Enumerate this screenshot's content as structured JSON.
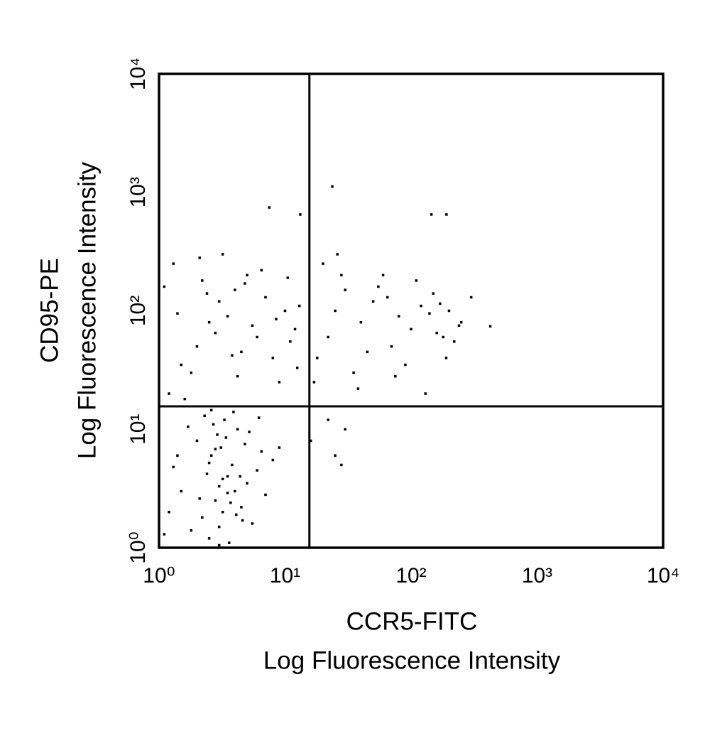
{
  "chart_data": {
    "type": "scatter",
    "x_title": [
      "CCR5-FITC",
      "Log Fluorescence Intensity"
    ],
    "y_title": [
      "CD95-PE",
      "Log Fluorescence Intensity"
    ],
    "log_x": true,
    "log_y": true,
    "xlim": [
      1,
      10000
    ],
    "ylim": [
      1,
      10000
    ],
    "xticks": [
      {
        "value": 1,
        "label": "10⁰"
      },
      {
        "value": 10,
        "label": "10¹"
      },
      {
        "value": 100,
        "label": "10²"
      },
      {
        "value": 1000,
        "label": "10³"
      },
      {
        "value": 10000,
        "label": "10⁴"
      }
    ],
    "yticks": [
      {
        "value": 1,
        "label": "10⁰"
      },
      {
        "value": 10,
        "label": "10¹"
      },
      {
        "value": 100,
        "label": "10²"
      },
      {
        "value": 1000,
        "label": "10³"
      },
      {
        "value": 10000,
        "label": "10⁴"
      }
    ],
    "quadrant_x": 15.6,
    "quadrant_y": 15.6,
    "color": "#000000",
    "x": [
      2.5,
      3,
      3.2,
      2.8,
      4,
      3.5,
      2.2,
      4.5,
      5,
      3.8,
      2.6,
      3.1,
      1.5,
      1.8,
      2,
      6,
      7,
      4.2,
      3.3,
      2.9,
      1.2,
      1.4,
      5.5,
      3.6,
      2.4,
      4.8,
      3,
      2.7,
      3.9,
      6.5,
      8,
      1.1,
      2.1,
      3.4,
      4.1,
      2.3,
      5.2,
      3.7,
      2.5,
      4.4,
      1.7,
      3,
      6.2,
      9,
      3.2,
      2.8,
      4.6,
      1.3,
      3.5,
      2.6,
      1.2,
      1.5,
      2,
      2.5,
      3,
      4,
      5,
      6,
      8,
      10,
      12,
      1.3,
      1.8,
      2.2,
      3.5,
      4.5,
      7,
      9,
      11,
      13,
      1.1,
      2.8,
      3.2,
      5.5,
      6.5,
      1.6,
      2.4,
      4.2,
      8.5,
      10.5,
      3.8,
      1.4,
      12.5,
      2.1,
      4.8,
      18,
      22,
      25,
      30,
      35,
      40,
      50,
      60,
      70,
      80,
      100,
      120,
      150,
      180,
      200,
      250,
      300,
      17,
      28,
      45,
      55,
      90,
      110,
      130,
      160,
      220,
      20,
      38,
      65,
      140,
      190,
      240,
      26,
      75,
      170,
      16,
      22,
      25,
      28,
      30,
      23.7,
      7.5,
      13.2,
      145,
      191,
      425
    ],
    "values": [
      1.2,
      1.5,
      2,
      2.5,
      3,
      4,
      1.8,
      2.2,
      3.5,
      5,
      6,
      7,
      3,
      1.4,
      8,
      4.5,
      2.8,
      10,
      12,
      9,
      2,
      6,
      1.6,
      1.1,
      4.2,
      7.5,
      3.3,
      11,
      14,
      6.5,
      5.5,
      1.3,
      2.6,
      8.5,
      1.9,
      13,
      9.5,
      2.4,
      5.2,
      4,
      10.5,
      1.05,
      12.5,
      7,
      3.8,
      6.8,
      1.7,
      4.8,
      2.9,
      14.5,
      20,
      35,
      50,
      80,
      120,
      150,
      200,
      60,
      40,
      100,
      70,
      250,
      30,
      180,
      90,
      45,
      130,
      25,
      55,
      110,
      160,
      65,
      300,
      75,
      220,
      18,
      140,
      28,
      85,
      190,
      42,
      95,
      33,
      280,
      170,
      40,
      60,
      100,
      150,
      30,
      80,
      120,
      200,
      50,
      90,
      70,
      110,
      140,
      60,
      100,
      80,
      130,
      25,
      200,
      45,
      160,
      35,
      180,
      20,
      65,
      55,
      250,
      22,
      130,
      95,
      40,
      75,
      300,
      28,
      115,
      8,
      12,
      6,
      5,
      10,
      1120,
      745,
      650,
      650,
      650,
      74
    ]
  }
}
